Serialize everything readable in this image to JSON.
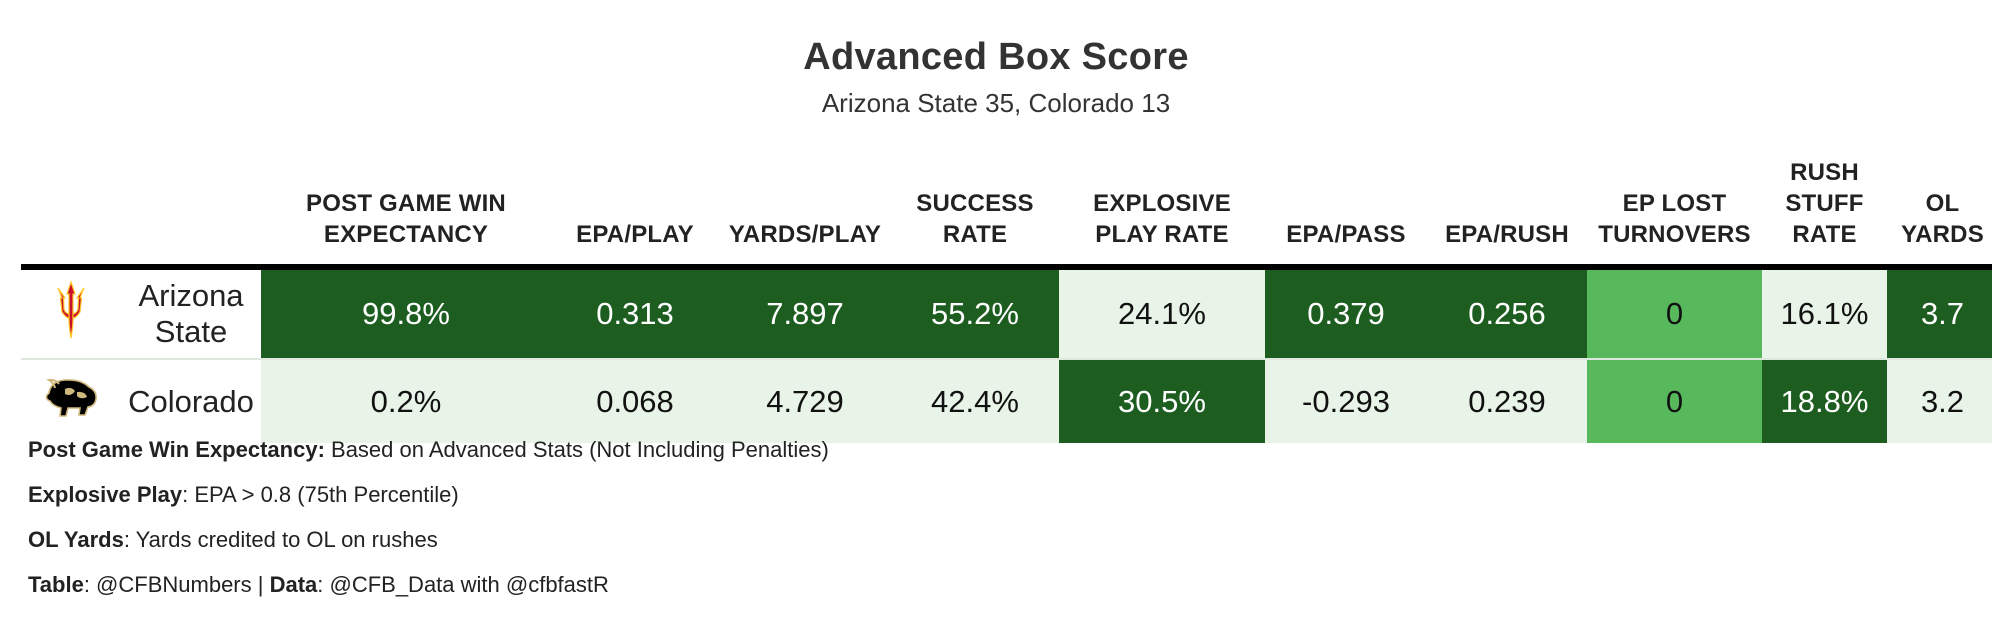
{
  "title": "Advanced Box Score",
  "subtitle": "Arizona State 35, Colorado 13",
  "columns": [
    "POST GAME WIN EXPECTANCY",
    "EPA/PLAY",
    "YARDS/PLAY",
    "SUCCESS RATE",
    "EXPLOSIVE PLAY RATE",
    "EPA/PASS",
    "EPA/RUSH",
    "EP LOST TURNOVERS",
    "RUSH STUFF RATE",
    "OL YARDS"
  ],
  "rows": [
    {
      "team": "Arizona State",
      "logo": "arizona-state-pitchfork-logo",
      "cells": [
        {
          "value": "99.8%",
          "shade": "dark"
        },
        {
          "value": "0.313",
          "shade": "dark"
        },
        {
          "value": "7.897",
          "shade": "dark"
        },
        {
          "value": "55.2%",
          "shade": "dark"
        },
        {
          "value": "24.1%",
          "shade": "light"
        },
        {
          "value": "0.379",
          "shade": "dark"
        },
        {
          "value": "0.256",
          "shade": "dark"
        },
        {
          "value": "0",
          "shade": "mid"
        },
        {
          "value": "16.1%",
          "shade": "light"
        },
        {
          "value": "3.7",
          "shade": "dark"
        }
      ]
    },
    {
      "team": "Colorado",
      "logo": "colorado-buffalo-logo",
      "cells": [
        {
          "value": "0.2%",
          "shade": "light"
        },
        {
          "value": "0.068",
          "shade": "light"
        },
        {
          "value": "4.729",
          "shade": "light"
        },
        {
          "value": "42.4%",
          "shade": "light"
        },
        {
          "value": "30.5%",
          "shade": "dark"
        },
        {
          "value": "-0.293",
          "shade": "light"
        },
        {
          "value": "0.239",
          "shade": "light"
        },
        {
          "value": "0",
          "shade": "mid"
        },
        {
          "value": "18.8%",
          "shade": "dark"
        },
        {
          "value": "3.2",
          "shade": "light"
        }
      ]
    }
  ],
  "colors": {
    "dark": "#1d5e20",
    "mid": "#58b85c",
    "light": "#e8f4e8"
  },
  "notes": [
    {
      "label": "Post Game Win Expectancy:",
      "text": " Based on Advanced Stats (Not Including Penalties)"
    },
    {
      "label": "Explosive Play",
      "text": ": EPA > 0.8 (75th Percentile)"
    },
    {
      "label": "OL Yards",
      "text": ": Yards credited to OL on rushes"
    }
  ],
  "credits": {
    "table_label": "Table",
    "table_value": ": @CFBNumbers | ",
    "data_label": "Data",
    "data_value": ": @CFB_Data with @cfbfastR"
  }
}
